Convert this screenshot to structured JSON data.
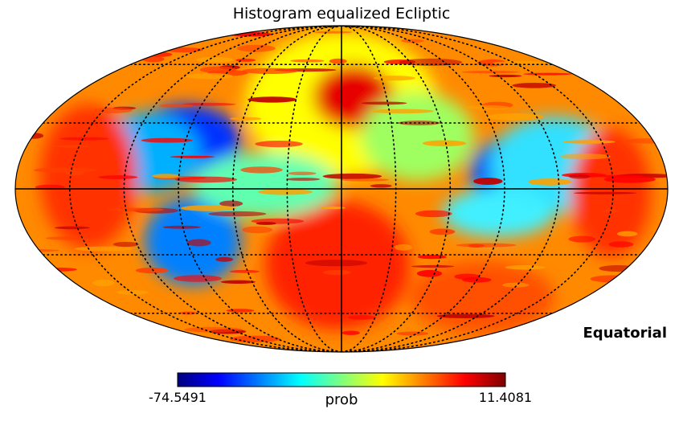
{
  "chart_data": {
    "type": "heatmap",
    "title": "Histogram equalized Ecliptic",
    "projection": "mollweide",
    "coordinate_system": "Equatorial",
    "colormap": "jet",
    "colorbar": {
      "min": -74.5491,
      "max": 11.4081,
      "min_label": "-74.5491",
      "max_label": "11.4081",
      "unit_label": "prob"
    },
    "graticule": {
      "style": "dotted",
      "latitude_step_deg": 30,
      "longitude_step_deg": 30
    },
    "colors": {
      "jet": [
        "#00007f",
        "#0000ff",
        "#007fff",
        "#00ffff",
        "#7fff7f",
        "#ffff00",
        "#ff7f00",
        "#ff0000",
        "#7f0000"
      ],
      "graticule": "#000000",
      "outline": "#000000"
    }
  }
}
